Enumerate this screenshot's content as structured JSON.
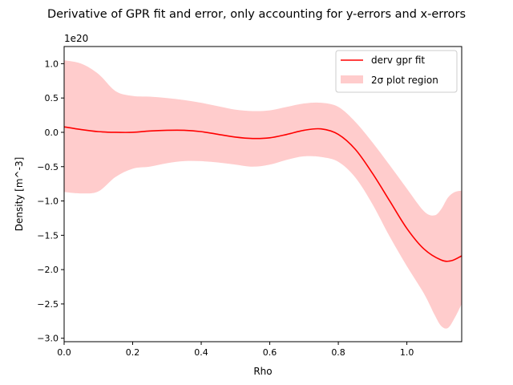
{
  "chart_data": {
    "type": "line",
    "title": "Derivative of GPR fit and error, only accounting for y-errors and x-errors",
    "xlabel": "Rho",
    "ylabel": "Density [m^-3]",
    "y_offset_label": "1e20",
    "xlim": [
      0.0,
      1.16
    ],
    "ylim": [
      -3.05,
      1.25
    ],
    "x_ticks": [
      0.0,
      0.2,
      0.4,
      0.6,
      0.8,
      1.0
    ],
    "x_tick_labels": [
      "0.0",
      "0.2",
      "0.4",
      "0.6",
      "0.8",
      "1.0"
    ],
    "y_ticks": [
      1.0,
      0.5,
      0.0,
      -0.5,
      -1.0,
      -1.5,
      -2.0,
      -2.5,
      -3.0
    ],
    "y_tick_labels": [
      "1.0",
      "0.5",
      "0.0",
      "−0.5",
      "−1.0",
      "−1.5",
      "−2.0",
      "−2.5",
      "−3.0"
    ],
    "grid": false,
    "legend_position": "top-right",
    "legend": [
      {
        "label": "derv gpr fit",
        "kind": "line",
        "color": "#ff0000"
      },
      {
        "label": "2σ plot region",
        "kind": "patch",
        "color": "#ffcccc"
      }
    ],
    "series": [
      {
        "name": "derv gpr fit",
        "color": "#ff0000",
        "x": [
          0.0,
          0.05,
          0.1,
          0.15,
          0.2,
          0.25,
          0.3,
          0.35,
          0.4,
          0.45,
          0.5,
          0.55,
          0.6,
          0.65,
          0.7,
          0.75,
          0.8,
          0.85,
          0.9,
          0.95,
          1.0,
          1.05,
          1.1,
          1.13,
          1.16
        ],
        "y": [
          0.08,
          0.04,
          0.01,
          0.0,
          0.0,
          0.02,
          0.03,
          0.03,
          0.01,
          -0.03,
          -0.07,
          -0.09,
          -0.08,
          -0.03,
          0.03,
          0.05,
          -0.03,
          -0.25,
          -0.6,
          -1.0,
          -1.4,
          -1.7,
          -1.86,
          -1.87,
          -1.8
        ]
      }
    ],
    "band": {
      "name": "2σ plot region",
      "color": "#ffcccc",
      "x": [
        0.0,
        0.05,
        0.1,
        0.15,
        0.2,
        0.25,
        0.3,
        0.35,
        0.4,
        0.45,
        0.5,
        0.55,
        0.6,
        0.65,
        0.7,
        0.75,
        0.8,
        0.85,
        0.9,
        0.95,
        1.0,
        1.05,
        1.08,
        1.1,
        1.12,
        1.14,
        1.16
      ],
      "upper": [
        1.05,
        1.0,
        0.85,
        0.6,
        0.53,
        0.52,
        0.5,
        0.47,
        0.43,
        0.38,
        0.33,
        0.31,
        0.32,
        0.37,
        0.42,
        0.43,
        0.37,
        0.15,
        -0.15,
        -0.48,
        -0.82,
        -1.15,
        -1.21,
        -1.12,
        -0.95,
        -0.87,
        -0.85
      ],
      "lower": [
        -0.87,
        -0.89,
        -0.86,
        -0.65,
        -0.53,
        -0.5,
        -0.45,
        -0.42,
        -0.42,
        -0.44,
        -0.47,
        -0.5,
        -0.47,
        -0.4,
        -0.35,
        -0.36,
        -0.43,
        -0.66,
        -1.05,
        -1.52,
        -1.95,
        -2.35,
        -2.65,
        -2.82,
        -2.85,
        -2.7,
        -2.5
      ]
    }
  }
}
